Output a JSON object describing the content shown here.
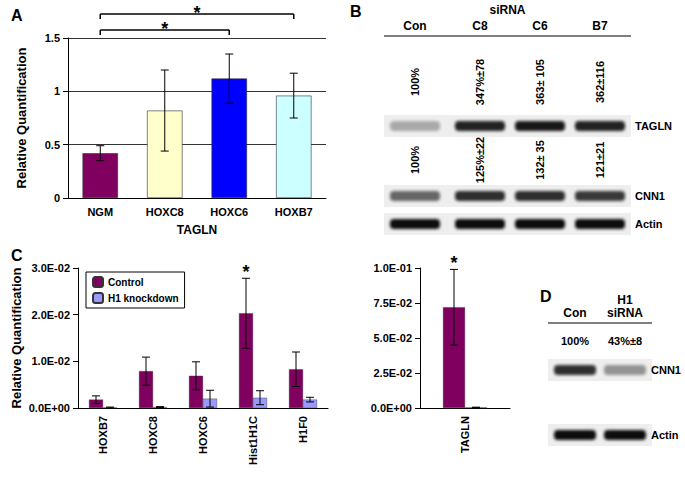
{
  "chart_data": [
    {
      "title": "A",
      "type": "bar",
      "categories": [
        "NGM",
        "HOXC8",
        "HOXC6",
        "HOXB7"
      ],
      "values": [
        0.42,
        0.82,
        1.12,
        0.96
      ],
      "errors": [
        0.07,
        0.38,
        0.23,
        0.21
      ],
      "colors": [
        "#800060",
        "#ffffcc",
        "#0000ff",
        "#ccffff"
      ],
      "xlabel": "TAGLN",
      "ylabel": "Relative Quantification",
      "ylim": [
        0,
        1.5
      ],
      "yticks": [
        0,
        0.5,
        1,
        1.5
      ],
      "grid": true,
      "significance": [
        {
          "from": "NGM",
          "to": "HOXB7",
          "label": "*"
        },
        {
          "from": "NGM",
          "to": "HOXC6",
          "label": "*"
        }
      ]
    },
    {
      "title": "C",
      "type": "bar",
      "categories": [
        "HOXB7",
        "HOXC8",
        "HOXC6",
        "Hist1H1C",
        "H1F0"
      ],
      "series": [
        {
          "name": "Control",
          "color": "#800060",
          "values": [
            0.0018,
            0.0079,
            0.0069,
            0.0203,
            0.0083
          ],
          "errors": [
            0.0008,
            0.003,
            0.003,
            0.0075,
            0.0037
          ]
        },
        {
          "name": "H1 knockdown",
          "color": "#9999ff",
          "values": [
            0.0001,
            0.0002,
            0.002,
            0.0022,
            0.0018
          ],
          "errors": [
            0.0001,
            0.0001,
            0.0018,
            0.0015,
            0.0005
          ]
        }
      ],
      "ylabel": "Relative Quantification",
      "ylim": [
        0,
        0.03
      ],
      "yticks": [
        {
          "value": 0,
          "label": "0.0E+00"
        },
        {
          "value": 0.01,
          "label": "1.0E-02"
        },
        {
          "value": 0.02,
          "label": "2.0E-02"
        },
        {
          "value": 0.03,
          "label": "3.0E-02"
        }
      ],
      "grid": false,
      "legend": "top-left",
      "annotations": [
        {
          "category": "Hist1H1C",
          "label": "*"
        }
      ]
    },
    {
      "type": "bar",
      "categories": [
        "TAGLN"
      ],
      "series": [
        {
          "name": "Control",
          "color": "#800060",
          "values": [
            0.072
          ],
          "errors": [
            0.027
          ]
        },
        {
          "name": "H1 knockdown",
          "color": "#9999ff",
          "values": [
            0.0004
          ],
          "errors": [
            0.0002
          ]
        }
      ],
      "ylim": [
        0,
        0.1
      ],
      "yticks": [
        {
          "value": 0,
          "label": "0.0E+00"
        },
        {
          "value": 0.025,
          "label": "2.5E-02"
        },
        {
          "value": 0.05,
          "label": "5.0E-02"
        },
        {
          "value": 0.075,
          "label": "7.5E-02"
        },
        {
          "value": 0.1,
          "label": "1.0E-01"
        }
      ],
      "grid": false,
      "annotations": [
        {
          "category": "TAGLN",
          "label": "*"
        }
      ]
    }
  ],
  "blots": [
    {
      "panel": "B",
      "header": "siRNA",
      "lanes": [
        "Con",
        "C8",
        "C6",
        "B7"
      ],
      "rows": [
        {
          "protein": "TAGLN",
          "quantification": [
            "100%",
            "347%±78",
            "363± 105",
            "362±116"
          ]
        },
        {
          "protein": "CNN1",
          "quantification": [
            "100%",
            "125%±22",
            "132± 35",
            "121±21"
          ]
        },
        {
          "protein": "Actin"
        }
      ]
    },
    {
      "panel": "D",
      "lanes": [
        "Con",
        "H1 siRNA"
      ],
      "rows": [
        {
          "protein": "CNN1",
          "quantification": [
            "100%",
            "43%±8"
          ]
        },
        {
          "protein": "Actin"
        }
      ]
    }
  ]
}
